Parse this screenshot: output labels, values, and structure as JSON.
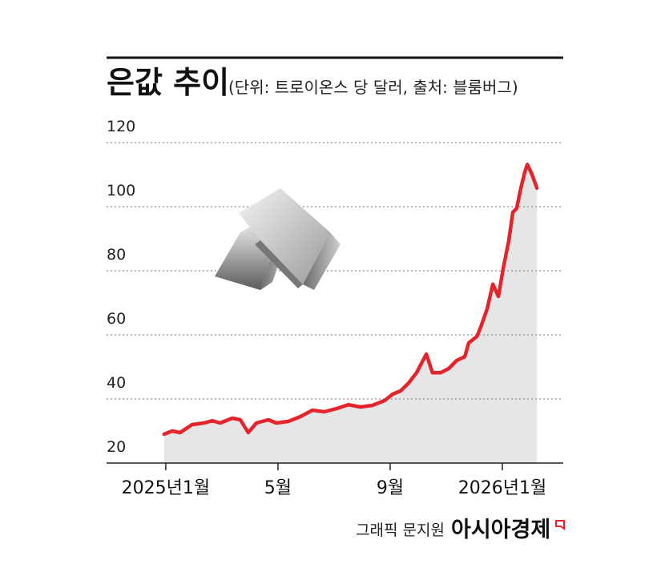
{
  "chart_data": {
    "type": "line",
    "title": "은값 추이",
    "subtitle": "(단위: 트로이온스 당 달러, 출처: 블룸버그)",
    "x": [
      -0.06,
      0.23,
      0.51,
      0.94,
      1.37,
      1.66,
      1.94,
      2.37,
      2.66,
      2.94,
      3.23,
      3.66,
      3.94,
      4.37,
      4.8,
      5.23,
      5.66,
      6.09,
      6.51,
      6.94,
      7.37,
      7.8,
      8.09,
      8.37,
      8.66,
      8.94,
      9.29,
      9.51,
      9.8,
      10.09,
      10.37,
      10.66,
      10.8,
      11.09,
      11.23,
      11.46,
      11.66,
      11.86,
      12.03,
      12.23,
      12.37,
      12.51,
      12.66,
      12.8,
      12.89,
      13.06,
      13.23
    ],
    "series": [
      {
        "color": "#e5232a",
        "values": [
          29,
          30,
          29.5,
          32,
          32.5,
          33.2,
          32.5,
          34,
          33.5,
          29.5,
          32.5,
          33.5,
          32.5,
          33,
          34.5,
          36.5,
          36,
          37,
          38.2,
          37.5,
          38,
          39.5,
          41.5,
          42.5,
          45,
          48.2,
          54,
          48.2,
          48.2,
          49.5,
          52,
          53.2,
          57.5,
          59.5,
          62.5,
          68.2,
          75.8,
          72,
          80.8,
          89.5,
          98.2,
          99.5,
          105.8,
          110.8,
          113.2,
          110,
          105.8
        ]
      }
    ],
    "area_color": "#e6e6e8",
    "ylim": [
      20,
      120
    ],
    "yticks": [
      20,
      40,
      60,
      80,
      100,
      120
    ],
    "xlim": [
      -2.11,
      14.17
    ],
    "xticks": [
      {
        "value": 0,
        "label": "2025년1월"
      },
      {
        "value": 4,
        "label": "5월"
      },
      {
        "value": 8,
        "label": "9월"
      },
      {
        "value": 12,
        "label": "2026년1월"
      }
    ],
    "grid": true
  },
  "footer": {
    "credit": "그래픽 문지원",
    "brand": "아시아경제"
  }
}
